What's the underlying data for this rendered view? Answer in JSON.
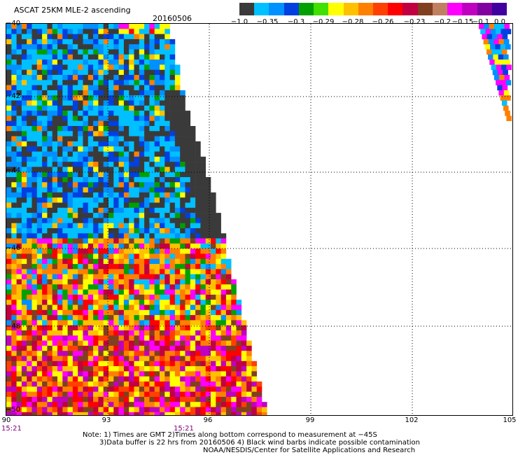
{
  "header": {
    "title": "ASCAT 25KM MLE-2 ascending",
    "date": "20160506"
  },
  "colorbar": {
    "colors": [
      "#3a3a3a",
      "#00c0ff",
      "#0090ff",
      "#0040e0",
      "#00a000",
      "#40e000",
      "#ffff00",
      "#ffc000",
      "#ff8000",
      "#ff4000",
      "#ff0000",
      "#c00040",
      "#804020",
      "#c08060",
      "#ff00ff",
      "#c000c0",
      "#8000a0",
      "#4000a0"
    ],
    "labels": [
      "−1.0",
      "−0.35",
      "−0.3",
      "−0.29",
      "−0.28",
      "−0.26",
      "−0.23",
      "−0.2",
      "−0.15",
      "−0.1",
      "0.0"
    ]
  },
  "axes": {
    "lat_labels": [
      "−40",
      "−42",
      "−44",
      "−46",
      "−48",
      "−50"
    ],
    "lon_labels": [
      "90",
      "93",
      "96",
      "99",
      "102",
      "105"
    ],
    "time_labels": [
      "15:21",
      "15:21"
    ]
  },
  "notes": [
    "Note: 1) Times are GMT 2)Times along bottom correspond to measurement at −45S",
    "3)Data buffer is 22 hrs from 20160506 4) Black wind barbs indicate possible contamination",
    "NOAA/NESDIS/Center for Satellite Applications and Research"
  ],
  "map": {
    "swath_colors": [
      "#3a3a3a",
      "#00c0ff",
      "#0090ff",
      "#0040e0",
      "#00a000",
      "#ffff00",
      "#ffc000",
      "#ff8000",
      "#ff4000",
      "#ff0000",
      "#c00040",
      "#804020",
      "#ff00ff",
      "#c000c0",
      "#ffffff"
    ]
  }
}
